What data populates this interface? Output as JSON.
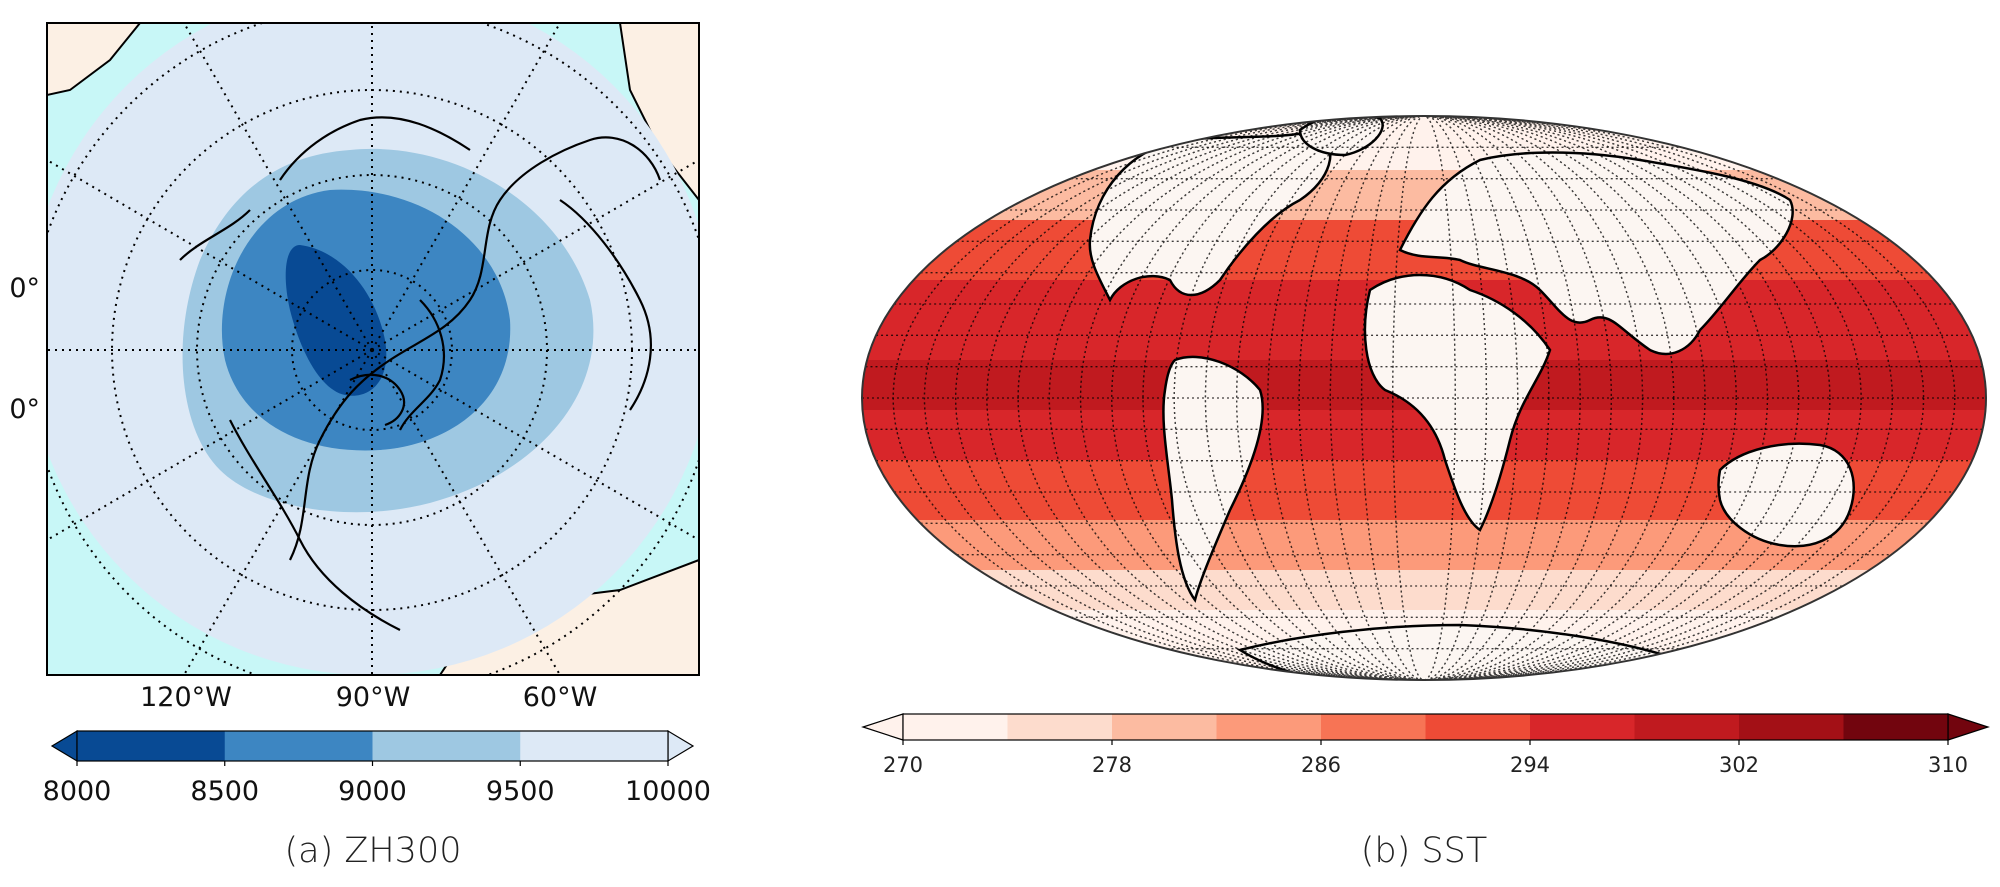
{
  "panel_a": {
    "caption": "(a) ZH300",
    "lon_labels": [
      "120°W",
      "90°W",
      "60°W"
    ],
    "lat_labels": [
      "0°",
      "0°"
    ],
    "colorbar": {
      "ticks": [
        "8000",
        "8500",
        "9000",
        "9500",
        "10000"
      ],
      "colors": [
        "#084a94",
        "#3d86c2",
        "#9ec8e2",
        "#dde9f6"
      ],
      "extend": "both"
    }
  },
  "panel_b": {
    "caption": "(b) SST",
    "colorbar": {
      "ticks": [
        "270",
        "278",
        "286",
        "294",
        "302",
        "310"
      ],
      "colors": [
        "#fff2ec",
        "#fddccd",
        "#fcbba1",
        "#fc9a7a",
        "#f77455",
        "#ee4b36",
        "#d8262a",
        "#c01a1f",
        "#a31016",
        "#72050e"
      ],
      "extend": "both"
    }
  },
  "colors": {
    "ocean_polar": "#c8f7f7",
    "land": "#fcf0e4",
    "zh_outer": "#dde9f6",
    "sst_land": "#fcf6f2"
  }
}
